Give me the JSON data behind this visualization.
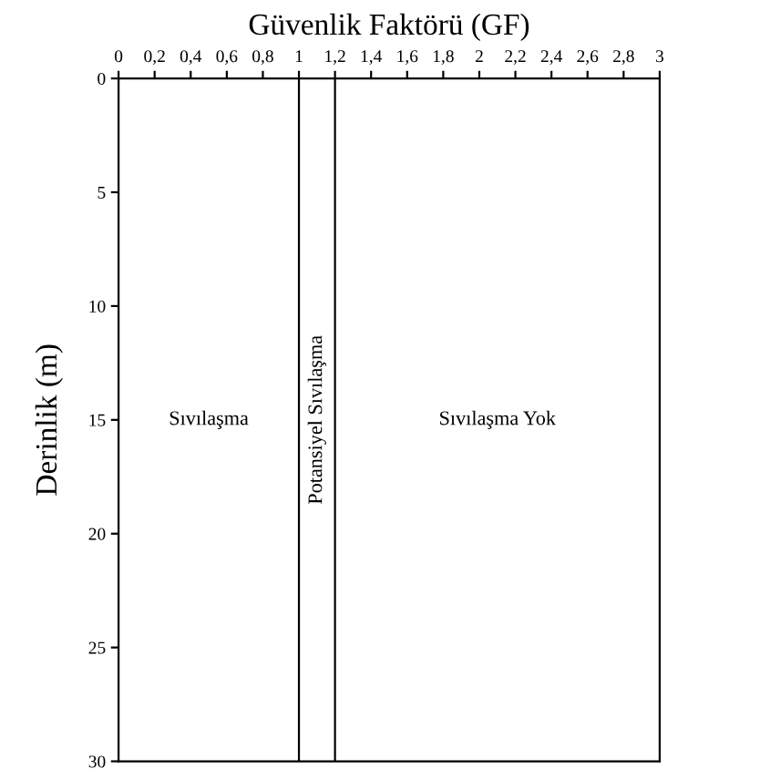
{
  "chart_data": {
    "type": "line",
    "xlabel": "Güvenlik Faktörü (GF)",
    "ylabel": "Derinlik (m)",
    "xlim": [
      0,
      3
    ],
    "ylim": [
      30,
      0
    ],
    "xticks": [
      0,
      {
        "value": 0.2,
        "label": "0,2"
      },
      {
        "value": 0.4,
        "label": "0,4"
      },
      {
        "value": 0.6,
        "label": "0,6"
      },
      {
        "value": 0.8,
        "label": "0,8"
      },
      1,
      {
        "value": 1.2,
        "label": "1,2"
      },
      {
        "value": 1.4,
        "label": "1,4"
      },
      {
        "value": 1.6,
        "label": "1,6"
      },
      {
        "value": 1.8,
        "label": "1,8"
      },
      2,
      {
        "value": 2.2,
        "label": "2,2"
      },
      {
        "value": 2.4,
        "label": "2,4"
      },
      {
        "value": 2.6,
        "label": "2,6"
      },
      {
        "value": 2.8,
        "label": "2,8"
      },
      3
    ],
    "yticks": [
      0,
      5,
      10,
      15,
      20,
      25,
      30
    ],
    "ref_lines": [
      {
        "axis": "x",
        "value": 1,
        "color": "#000000"
      },
      {
        "axis": "x",
        "value": 1.2,
        "color": "#000000"
      }
    ],
    "annotations": [
      "Sıvılaşma",
      "Potansiyel Sıvılaşma",
      "Sıvılaşma Yok"
    ]
  }
}
